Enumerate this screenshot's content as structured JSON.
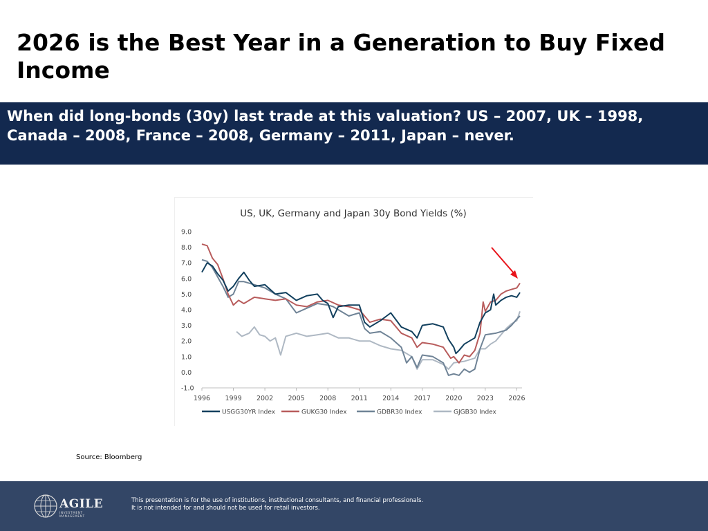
{
  "slide": {
    "title": "2026 is the Best Year in a Generation to Buy Fixed Income",
    "banner_line1": "When did long-bonds (30y) last trade at this valuation? US – 2007, UK – 1998,",
    "banner_line2": "Canada – 2008, France – 2008, Germany – 2011, Japan – never.",
    "source": "Source: Bloomberg"
  },
  "footer": {
    "logo_text": "AGILE",
    "logo_subtext": "INVESTMENT MANAGEMENT",
    "disclaimer_line1": "This presentation is for the use of institutions, institutional consultants, and financial professionals.",
    "disclaimer_line2": "It is not intended for and should not be used for retail investors.",
    "background_color": "#334666"
  },
  "chart_data": {
    "type": "line",
    "title": "US, UK, Germany and Japan 30y Bond Yields (%)",
    "xlabel": "",
    "ylabel": "",
    "xlim": [
      1996,
      2026.5
    ],
    "ylim": [
      -1.0,
      9.0
    ],
    "x_ticks": [
      "1996",
      "1999",
      "2002",
      "2005",
      "2008",
      "2011",
      "2014",
      "2017",
      "2020",
      "2023",
      "2026"
    ],
    "y_ticks": [
      "9.0",
      "8.0",
      "7.0",
      "6.0",
      "5.0",
      "4.0",
      "3.0",
      "2.0",
      "1.0",
      "0.0",
      "-1.0"
    ],
    "grid": false,
    "legend_position": "bottom",
    "annotation": "red arrow pointing to latest UK yield",
    "series": [
      {
        "name": "USGG30YR Index",
        "color": "#12405e",
        "x": [
          1996,
          1996.5,
          1997,
          1997.5,
          1998,
          1998.5,
          1999,
          1999.5,
          2000,
          2000.5,
          2001,
          2002,
          2003,
          2004,
          2005,
          2006,
          2007,
          2007.5,
          2008,
          2008.5,
          2009,
          2010,
          2011,
          2011.5,
          2012,
          2013,
          2014,
          2015,
          2016,
          2016.5,
          2017,
          2018,
          2019,
          2019.5,
          2020,
          2020.2,
          2020.5,
          2021,
          2021.5,
          2022,
          2022.5,
          2023,
          2023.5,
          2023.8,
          2024,
          2024.5,
          2025,
          2025.5,
          2026,
          2026.3
        ],
        "y": [
          6.4,
          7.0,
          6.8,
          6.3,
          5.9,
          5.2,
          5.5,
          6.0,
          6.4,
          5.9,
          5.5,
          5.6,
          5.0,
          5.1,
          4.6,
          4.9,
          5.0,
          4.6,
          4.4,
          3.5,
          4.2,
          4.3,
          4.3,
          3.2,
          2.9,
          3.3,
          3.8,
          2.9,
          2.6,
          2.2,
          3.0,
          3.1,
          2.9,
          2.1,
          1.6,
          1.2,
          1.4,
          1.8,
          2.0,
          2.2,
          3.2,
          3.8,
          4.0,
          5.0,
          4.3,
          4.6,
          4.8,
          4.9,
          4.8,
          5.1
        ]
      },
      {
        "name": "GUKG30 Index",
        "color": "#b85c5c",
        "x": [
          1996,
          1996.5,
          1997,
          1997.5,
          1998,
          1998.5,
          1999,
          1999.5,
          2000,
          2001,
          2002,
          2003,
          2004,
          2005,
          2006,
          2007,
          2008,
          2009,
          2010,
          2011,
          2012,
          2013,
          2014,
          2015,
          2016,
          2016.5,
          2017,
          2018,
          2019,
          2019.7,
          2020,
          2020.5,
          2021,
          2021.5,
          2022,
          2022.5,
          2022.8,
          2023,
          2023.5,
          2024,
          2024.5,
          2025,
          2025.5,
          2026,
          2026.3
        ],
        "y": [
          8.2,
          8.1,
          7.3,
          6.9,
          6.0,
          5.0,
          4.3,
          4.6,
          4.4,
          4.8,
          4.7,
          4.6,
          4.7,
          4.3,
          4.2,
          4.5,
          4.6,
          4.3,
          4.2,
          4.0,
          3.2,
          3.4,
          3.3,
          2.5,
          2.2,
          1.6,
          1.9,
          1.8,
          1.6,
          0.9,
          1.0,
          0.6,
          1.1,
          1.0,
          1.4,
          2.5,
          4.5,
          3.9,
          4.5,
          4.6,
          5.0,
          5.2,
          5.3,
          5.4,
          5.7
        ]
      },
      {
        "name": "GDBR30 Index",
        "color": "#6f8396",
        "x": [
          1996,
          1996.5,
          1997,
          1997.5,
          1998,
          1998.5,
          1999,
          1999.5,
          2000,
          2001,
          2002,
          2003,
          2004,
          2005,
          2006,
          2007,
          2008,
          2008.5,
          2009,
          2010,
          2011,
          2011.5,
          2012,
          2013,
          2014,
          2015,
          2015.5,
          2016,
          2016.5,
          2017,
          2018,
          2019,
          2019.5,
          2020,
          2020.5,
          2021,
          2021.5,
          2022,
          2022.5,
          2023,
          2024,
          2025,
          2025.5,
          2026,
          2026.3
        ],
        "y": [
          7.2,
          7.1,
          6.7,
          6.1,
          5.5,
          4.8,
          5.0,
          5.8,
          5.8,
          5.6,
          5.4,
          5.0,
          4.7,
          3.8,
          4.1,
          4.4,
          4.3,
          4.2,
          4.0,
          3.6,
          3.8,
          2.8,
          2.5,
          2.6,
          2.2,
          1.6,
          0.6,
          1.0,
          0.3,
          1.1,
          1.0,
          0.6,
          -0.2,
          -0.1,
          -0.2,
          0.2,
          0.0,
          0.2,
          1.5,
          2.4,
          2.5,
          2.7,
          3.0,
          3.4,
          3.6
        ]
      },
      {
        "name": "GJGB30 Index",
        "color": "#aeb8c3",
        "x": [
          1999.3,
          1999.8,
          2000.5,
          2001,
          2001.5,
          2002,
          2002.5,
          2003,
          2003.5,
          2004,
          2005,
          2006,
          2007,
          2008,
          2009,
          2010,
          2011,
          2012,
          2013,
          2014,
          2015,
          2016,
          2016.5,
          2017,
          2018,
          2019,
          2019.5,
          2020,
          2021,
          2022,
          2022.5,
          2023,
          2023.5,
          2024,
          2025,
          2025.5,
          2026,
          2026.3
        ],
        "y": [
          2.6,
          2.3,
          2.5,
          2.9,
          2.4,
          2.3,
          2.0,
          2.2,
          1.1,
          2.3,
          2.5,
          2.3,
          2.4,
          2.5,
          2.2,
          2.2,
          2.0,
          2.0,
          1.7,
          1.5,
          1.4,
          1.0,
          0.2,
          0.8,
          0.8,
          0.5,
          0.2,
          0.6,
          0.7,
          0.9,
          1.5,
          1.5,
          1.8,
          2.0,
          2.8,
          3.1,
          3.3,
          3.9
        ]
      }
    ]
  }
}
